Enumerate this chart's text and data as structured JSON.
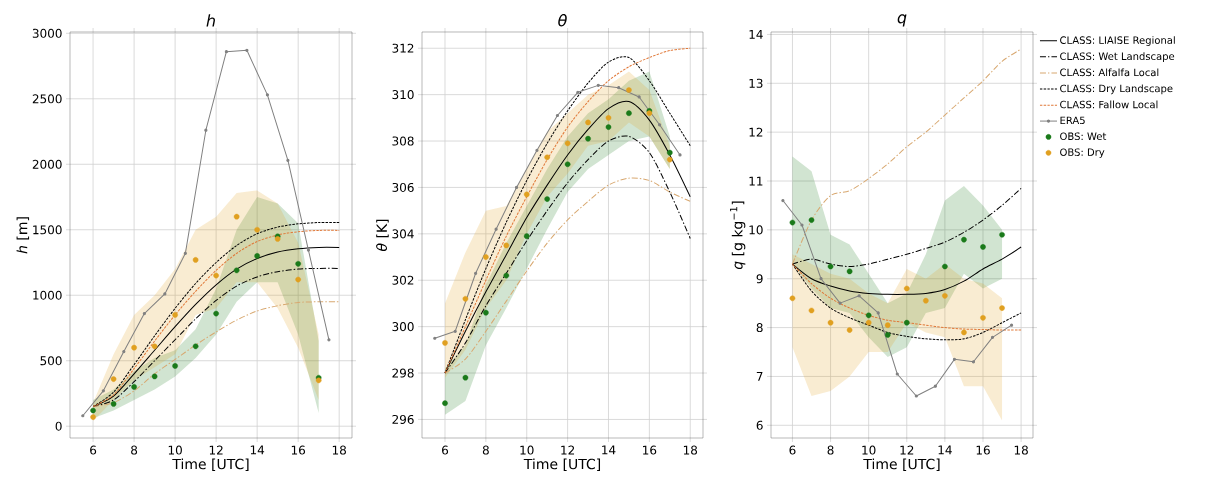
{
  "chart_data": [
    {
      "type": "line",
      "title": "h",
      "xlabel": "Time [UTC]",
      "ylabel": "*h* [m]",
      "x": [
        6,
        7,
        8,
        9,
        10,
        11,
        12,
        13,
        14,
        15,
        16,
        17,
        18
      ],
      "xlim": [
        4.875,
        18.625
      ],
      "ylim": [
        -90,
        3010
      ],
      "xticks": [
        6,
        8,
        10,
        12,
        14,
        16,
        18
      ],
      "yticks": [
        0,
        500,
        1000,
        1500,
        2000,
        2500,
        3000
      ],
      "grid": true,
      "series": [
        {
          "type": "line",
          "color": "#000000",
          "line_style": "solid",
          "values": [
            150,
            230,
            400,
            580,
            760,
            930,
            1080,
            1200,
            1280,
            1330,
            1355,
            1365,
            1365
          ]
        },
        {
          "type": "line",
          "color": "#000000",
          "line_style": "dashdot",
          "values": [
            150,
            200,
            340,
            500,
            660,
            820,
            960,
            1070,
            1140,
            1180,
            1200,
            1205,
            1205
          ]
        },
        {
          "type": "line",
          "color": "#d8a870",
          "line_style": "dashdot",
          "values": [
            150,
            180,
            270,
            400,
            510,
            620,
            720,
            810,
            880,
            920,
            945,
            950,
            950
          ]
        },
        {
          "type": "line",
          "color": "#000000",
          "line_style": "dashed",
          "values": [
            150,
            260,
            470,
            690,
            900,
            1090,
            1250,
            1380,
            1470,
            1520,
            1545,
            1555,
            1555
          ]
        },
        {
          "type": "line",
          "color": "#e07838",
          "line_style": "dashed",
          "values": [
            150,
            240,
            440,
            650,
            850,
            1030,
            1190,
            1320,
            1410,
            1460,
            1485,
            1495,
            1495
          ]
        },
        {
          "type": "line",
          "color": "#808080",
          "line_style": "solid",
          "marker": "circle",
          "x": [
            5.5,
            6.5,
            7.5,
            8.5,
            9.5,
            10.5,
            11.5,
            12.5,
            13.5,
            14.5,
            15.5,
            16.5,
            17.5
          ],
          "values": [
            80,
            270,
            570,
            860,
            1010,
            1320,
            2260,
            2860,
            2870,
            2530,
            2030,
            1345,
            660
          ]
        },
        {
          "type": "scatter",
          "color": "#1a7a1a",
          "marker": "circle",
          "x": [
            6,
            7,
            8,
            9,
            10,
            11,
            12,
            13,
            14,
            15,
            16,
            17
          ],
          "values": [
            120,
            170,
            300,
            380,
            460,
            610,
            860,
            1190,
            1300,
            1450,
            1240,
            370
          ],
          "lower": [
            60,
            120,
            200,
            280,
            380,
            520,
            700,
            950,
            1100,
            1100,
            700,
            100
          ],
          "upper": [
            200,
            280,
            420,
            520,
            580,
            740,
            1050,
            1500,
            1750,
            1700,
            1550,
            650
          ]
        },
        {
          "type": "scatter",
          "color": "#e0a020",
          "marker": "circle",
          "x": [
            6,
            7,
            8,
            9,
            10,
            11,
            12,
            13,
            14,
            15,
            16,
            17
          ],
          "values": [
            70,
            360,
            600,
            610,
            850,
            1270,
            1150,
            1600,
            1500,
            1430,
            1120,
            350
          ],
          "lower": [
            40,
            200,
            350,
            450,
            550,
            850,
            900,
            1100,
            1100,
            900,
            600,
            200
          ],
          "upper": [
            180,
            550,
            850,
            1000,
            1200,
            1500,
            1600,
            1780,
            1800,
            1700,
            1400,
            700
          ]
        }
      ]
    },
    {
      "type": "line",
      "title": "θ",
      "xlabel": "Time [UTC]",
      "ylabel": "*θ* [K]",
      "x": [
        6,
        7,
        8,
        9,
        10,
        11,
        12,
        13,
        14,
        15,
        16,
        17,
        18
      ],
      "xlim": [
        4.875,
        18.625
      ],
      "ylim": [
        295.2,
        312.7
      ],
      "xticks": [
        6,
        8,
        10,
        12,
        14,
        16,
        18
      ],
      "yticks": [
        296,
        298,
        300,
        302,
        304,
        306,
        308,
        310,
        312
      ],
      "grid": true,
      "series": [
        {
          "type": "line",
          "color": "#000000",
          "line_style": "solid",
          "values": [
            298.0,
            299.8,
            301.5,
            303.1,
            304.7,
            306.1,
            307.4,
            308.5,
            309.4,
            309.7,
            308.9,
            307.4,
            305.6
          ]
        },
        {
          "type": "line",
          "color": "#000000",
          "line_style": "dashdot",
          "values": [
            298.0,
            299.3,
            300.9,
            302.3,
            303.7,
            305.0,
            306.2,
            307.2,
            308.0,
            308.2,
            307.5,
            305.8,
            303.8
          ]
        },
        {
          "type": "line",
          "color": "#d8a870",
          "line_style": "dashdot",
          "values": [
            298.0,
            298.6,
            299.8,
            301.1,
            302.4,
            303.6,
            304.6,
            305.4,
            306.1,
            306.4,
            306.3,
            305.8,
            305.4
          ]
        },
        {
          "type": "line",
          "color": "#000000",
          "line_style": "dashed",
          "values": [
            298.0,
            300.3,
            302.5,
            304.5,
            306.3,
            307.9,
            309.3,
            310.5,
            311.4,
            311.6,
            310.6,
            309.2,
            307.8
          ]
        },
        {
          "type": "line",
          "color": "#e07838",
          "line_style": "dashed",
          "values": [
            298.0,
            300.0,
            302.0,
            303.9,
            305.6,
            307.2,
            308.6,
            309.7,
            310.6,
            311.2,
            311.6,
            311.9,
            312.0
          ]
        },
        {
          "type": "line",
          "color": "#808080",
          "line_style": "solid",
          "marker": "circle",
          "x": [
            5.5,
            6.5,
            7.5,
            8.5,
            9.5,
            10.5,
            11.5,
            12.5,
            13.5,
            14.5,
            15.5,
            16.5,
            17.5
          ],
          "values": [
            299.5,
            299.8,
            302.3,
            304.2,
            306.0,
            307.6,
            309.1,
            310.1,
            310.4,
            310.3,
            309.9,
            308.7,
            307.4
          ]
        },
        {
          "type": "scatter",
          "color": "#1a7a1a",
          "marker": "circle",
          "x": [
            6,
            7,
            8,
            9,
            10,
            11,
            12,
            13,
            14,
            15,
            16,
            17
          ],
          "values": [
            296.7,
            297.8,
            300.6,
            302.2,
            303.9,
            305.5,
            307.0,
            308.1,
            308.6,
            309.2,
            309.3,
            307.5
          ],
          "lower": [
            296.2,
            296.8,
            299.2,
            300.8,
            302.5,
            304.2,
            305.8,
            306.8,
            307.4,
            308.0,
            308.2,
            306.8
          ],
          "upper": [
            298.2,
            299.2,
            301.8,
            303.6,
            305.2,
            306.8,
            308.2,
            309.2,
            309.8,
            310.6,
            311.0,
            308.2
          ]
        },
        {
          "type": "scatter",
          "color": "#e0a020",
          "marker": "circle",
          "x": [
            6,
            7,
            8,
            9,
            10,
            11,
            12,
            13,
            14,
            15,
            16,
            17
          ],
          "values": [
            299.3,
            301.2,
            303.0,
            303.5,
            305.7,
            307.3,
            307.9,
            308.8,
            309.0,
            310.2,
            309.2,
            307.2
          ],
          "lower": [
            297.8,
            299.0,
            300.8,
            302.0,
            304.0,
            305.6,
            306.6,
            307.8,
            308.0,
            308.8,
            308.2,
            306.8
          ],
          "upper": [
            301.0,
            303.2,
            305.0,
            305.2,
            306.8,
            308.4,
            309.2,
            310.0,
            310.4,
            311.0,
            310.2,
            307.8
          ]
        }
      ]
    },
    {
      "type": "line",
      "title": "q",
      "xlabel": "Time [UTC]",
      "ylabel": "*q* [g  kg$^{−1}$]",
      "x": [
        6,
        7,
        8,
        9,
        10,
        11,
        12,
        13,
        14,
        15,
        16,
        17,
        18
      ],
      "xlim": [
        4.875,
        18.625
      ],
      "ylim": [
        5.74,
        14.05
      ],
      "xticks": [
        6,
        8,
        10,
        12,
        14,
        16,
        18
      ],
      "yticks": [
        6,
        7,
        8,
        9,
        10,
        11,
        12,
        13,
        14
      ],
      "grid": true,
      "legend": "right",
      "series": [
        {
          "name": "CLASS: LIAISE Regional",
          "type": "line",
          "color": "#000000",
          "line_style": "solid",
          "values": [
            9.3,
            9.0,
            8.85,
            8.75,
            8.7,
            8.68,
            8.68,
            8.7,
            8.78,
            8.95,
            9.2,
            9.4,
            9.65
          ]
        },
        {
          "name": "CLASS: Wet Landscape",
          "type": "line",
          "color": "#000000",
          "line_style": "dashdot",
          "values": [
            9.3,
            9.4,
            9.3,
            9.25,
            9.3,
            9.4,
            9.5,
            9.62,
            9.75,
            9.95,
            10.2,
            10.5,
            10.85
          ]
        },
        {
          "name": "CLASS: Alfalfa Local",
          "type": "line",
          "color": "#d8a870",
          "line_style": "dashdot",
          "values": [
            9.3,
            10.2,
            10.7,
            10.8,
            11.05,
            11.35,
            11.7,
            12.0,
            12.35,
            12.7,
            13.05,
            13.45,
            13.7
          ]
        },
        {
          "name": "CLASS: Dry Landscape",
          "type": "line",
          "color": "#000000",
          "line_style": "dashed",
          "values": [
            9.3,
            8.75,
            8.4,
            8.2,
            8.05,
            7.9,
            7.82,
            7.77,
            7.75,
            7.77,
            7.9,
            8.1,
            8.3
          ]
        },
        {
          "name": "CLASS: Fallow Local",
          "type": "line",
          "color": "#e07838",
          "line_style": "dashed",
          "values": [
            9.3,
            8.9,
            8.6,
            8.4,
            8.25,
            8.15,
            8.1,
            8.05,
            8.0,
            7.97,
            7.96,
            7.95,
            7.95
          ]
        },
        {
          "name": "ERA5",
          "type": "line",
          "color": "#808080",
          "line_style": "solid",
          "marker": "circle",
          "x": [
            5.5,
            6.5,
            7.5,
            8.5,
            9.5,
            10.5,
            11.5,
            12.5,
            13.5,
            14.5,
            15.5,
            16.5,
            17.5
          ],
          "values": [
            10.6,
            10.1,
            9.0,
            8.5,
            8.65,
            8.3,
            7.05,
            6.6,
            6.8,
            7.35,
            7.3,
            7.8,
            8.05
          ]
        },
        {
          "name": "OBS: Wet",
          "type": "scatter",
          "color": "#1a7a1a",
          "marker": "circle",
          "x": [
            6,
            7,
            8,
            9,
            10,
            11,
            12,
            13,
            14,
            15,
            16,
            17
          ],
          "values": [
            10.15,
            10.2,
            9.25,
            9.15,
            8.25,
            7.85,
            8.1,
            null,
            9.25,
            9.8,
            9.65,
            9.9
          ],
          "lower": [
            9.3,
            8.8,
            8.4,
            8.3,
            7.8,
            7.4,
            7.6,
            8.3,
            8.4,
            9.1,
            8.8,
            9.0
          ],
          "upper": [
            11.5,
            11.2,
            9.9,
            9.7,
            9.1,
            8.5,
            8.7,
            9.5,
            10.6,
            10.9,
            10.5,
            10.0
          ]
        },
        {
          "name": "OBS: Dry",
          "type": "scatter",
          "color": "#e0a020",
          "marker": "circle",
          "x": [
            6,
            7,
            8,
            9,
            10,
            11,
            12,
            13,
            14,
            15,
            16,
            17
          ],
          "values": [
            8.6,
            8.35,
            8.1,
            7.95,
            8.1,
            8.05,
            8.8,
            8.55,
            8.65,
            7.9,
            8.2,
            8.4
          ],
          "lower": [
            7.6,
            6.6,
            6.7,
            7.0,
            7.5,
            7.5,
            8.1,
            7.9,
            7.8,
            6.8,
            6.8,
            6.1
          ],
          "upper": [
            9.5,
            9.3,
            9.1,
            9.0,
            8.7,
            8.5,
            9.2,
            9.0,
            9.3,
            9.0,
            8.9,
            8.6
          ]
        }
      ]
    }
  ]
}
